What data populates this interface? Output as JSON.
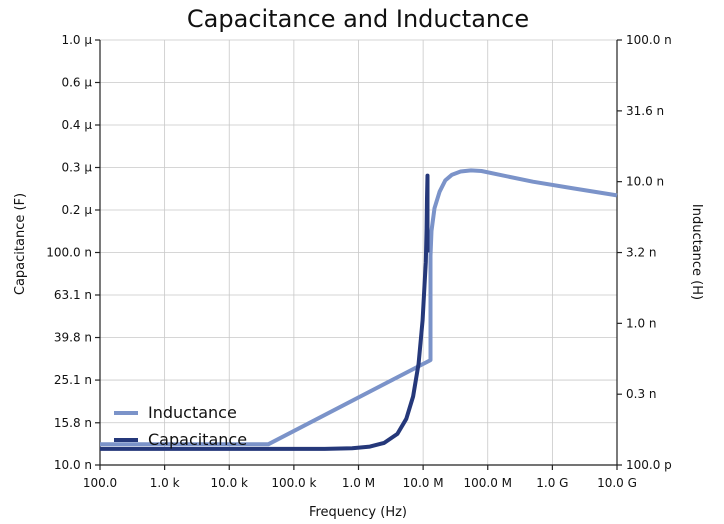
{
  "chart_data": {
    "type": "line",
    "title": "Capacitance and Inductance",
    "xlabel": "Frequency (Hz)",
    "ylabel_left": "Capacitance (F)",
    "ylabel_right": "Inductance (H)",
    "x_scale": "log",
    "y_left_scale": "log",
    "y_right_scale": "log",
    "xlim": [
      100,
      10000000000
    ],
    "ylim_left": [
      1e-08,
      1e-06
    ],
    "ylim_right": [
      1e-10,
      1e-07
    ],
    "grid": true,
    "legend_position": "bottom-left",
    "x_ticks": [
      {
        "value": 100,
        "label": "100.0"
      },
      {
        "value": 1000,
        "label": "1.0 k"
      },
      {
        "value": 10000,
        "label": "10.0 k"
      },
      {
        "value": 100000,
        "label": "100.0 k"
      },
      {
        "value": 1000000,
        "label": "1.0 M"
      },
      {
        "value": 10000000,
        "label": "10.0 M"
      },
      {
        "value": 100000000,
        "label": "100.0 M"
      },
      {
        "value": 1000000000,
        "label": "1.0 G"
      },
      {
        "value": 10000000000,
        "label": "10.0 G"
      }
    ],
    "y_left_ticks": [
      {
        "value": 1e-08,
        "label": "10.0 n"
      },
      {
        "value": 1.58e-08,
        "label": "15.8 n"
      },
      {
        "value": 2.51e-08,
        "label": "25.1 n"
      },
      {
        "value": 3.98e-08,
        "label": "39.8 n"
      },
      {
        "value": 6.31e-08,
        "label": "63.1 n"
      },
      {
        "value": 1e-07,
        "label": "100.0 n"
      },
      {
        "value": 1.585e-07,
        "label": "0.2 µ"
      },
      {
        "value": 2.512e-07,
        "label": "0.3 µ"
      },
      {
        "value": 3.981e-07,
        "label": "0.4 µ"
      },
      {
        "value": 6.31e-07,
        "label": "0.6 µ"
      },
      {
        "value": 1e-06,
        "label": "1.0 µ"
      }
    ],
    "y_right_ticks": [
      {
        "value": 1e-10,
        "label": "100.0 p"
      },
      {
        "value": 3.16e-10,
        "label": "0.3 n"
      },
      {
        "value": 1e-09,
        "label": "1.0 n"
      },
      {
        "value": 3.16e-09,
        "label": "3.2 n"
      },
      {
        "value": 1e-08,
        "label": "10.0 n"
      },
      {
        "value": 3.16e-08,
        "label": "31.6 n"
      },
      {
        "value": 1e-07,
        "label": "100.0 n"
      }
    ],
    "series": [
      {
        "name": "Inductance",
        "axis": "right",
        "color": "#7b93c9",
        "x": [
          100,
          40000,
          13000000,
          13000000,
          13500000,
          15000000,
          18000000,
          22000000,
          28000000,
          38000000,
          55000000,
          80000000,
          150000000,
          500000000,
          2000000000,
          10000000000
        ],
        "y": [
          1.4e-10,
          1.4e-10,
          5.5e-10,
          3e-09,
          4.5e-09,
          6.5e-09,
          8.5e-09,
          1.02e-08,
          1.12e-08,
          1.18e-08,
          1.2e-08,
          1.19e-08,
          1.12e-08,
          1e-08,
          9e-09,
          8e-09
        ]
      },
      {
        "name": "Capacitance",
        "axis": "left",
        "color": "#25387a",
        "x": [
          100,
          300000,
          800000,
          1500000,
          2500000,
          4000000,
          5500000,
          7000000,
          8500000,
          9800000,
          10500000,
          11000000,
          11300000,
          11500000,
          11700000,
          11700000
        ],
        "y": [
          1.19e-08,
          1.19e-08,
          1.2e-08,
          1.22e-08,
          1.27e-08,
          1.4e-08,
          1.65e-08,
          2.1e-08,
          3e-08,
          4.8e-08,
          7e-08,
          9e-08,
          1.3e-07,
          1.8e-07,
          2.3e-07,
          1e-07
        ]
      }
    ]
  }
}
